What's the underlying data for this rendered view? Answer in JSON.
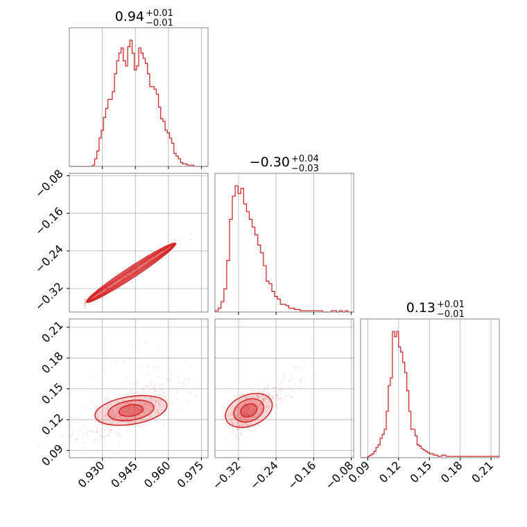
{
  "colors": {
    "accent": "#d62728",
    "grid": "#b0b0b0",
    "frame": "#808080"
  },
  "chart_data": [
    {
      "type": "histogram",
      "panel": "param-1-marginal",
      "title": {
        "value": "0.94",
        "plus": "+0.01",
        "minus": "−0.01"
      },
      "xlim": [
        0.915,
        0.978
      ],
      "xticks": [
        0.93,
        0.945,
        0.96,
        0.975
      ],
      "bins": [
        0.917,
        0.918,
        0.919,
        0.92,
        0.921,
        0.922,
        0.923,
        0.924,
        0.925,
        0.926,
        0.927,
        0.928,
        0.929,
        0.93,
        0.931,
        0.932,
        0.933,
        0.934,
        0.935,
        0.936,
        0.937,
        0.938,
        0.939,
        0.94,
        0.941,
        0.942,
        0.943,
        0.944,
        0.945,
        0.946,
        0.947,
        0.948,
        0.949,
        0.95,
        0.951,
        0.952,
        0.953,
        0.954,
        0.955,
        0.956,
        0.957,
        0.958,
        0.959,
        0.96,
        0.961,
        0.962,
        0.963,
        0.964,
        0.965,
        0.966,
        0.967,
        0.968,
        0.969,
        0.97,
        0.971,
        0.972,
        0.973,
        0.974,
        0.975,
        0.976,
        0.977
      ],
      "counts": [
        0,
        0,
        0,
        0,
        0,
        0,
        0,
        0,
        0,
        0.01,
        0.06,
        0.12,
        0.22,
        0.28,
        0.38,
        0.45,
        0.52,
        0.52,
        0.58,
        0.72,
        0.82,
        0.88,
        0.92,
        0.82,
        0.78,
        0.93,
        0.98,
        0.88,
        0.75,
        0.78,
        0.92,
        0.88,
        0.84,
        0.8,
        0.72,
        0.62,
        0.62,
        0.6,
        0.56,
        0.46,
        0.37,
        0.35,
        0.28,
        0.26,
        0.22,
        0.18,
        0.1,
        0.08,
        0.06,
        0.03,
        0.02,
        0.02,
        0.01,
        0.01,
        0.01,
        0,
        0,
        0,
        0,
        0,
        0
      ]
    },
    {
      "type": "histogram",
      "panel": "param-2-marginal",
      "title": {
        "value": "−0.30",
        "plus": "+0.04",
        "minus": "−0.03"
      },
      "xlim": [
        -0.37,
        -0.075
      ],
      "xticks": [
        -0.32,
        -0.24,
        -0.16,
        -0.08
      ],
      "xtick_labels": [
        "−0.32",
        "−0.24",
        "−0.16",
        "−0.08"
      ],
      "bins": [
        -0.366,
        -0.36,
        -0.354,
        -0.348,
        -0.342,
        -0.336,
        -0.33,
        -0.324,
        -0.318,
        -0.312,
        -0.306,
        -0.3,
        -0.294,
        -0.288,
        -0.282,
        -0.276,
        -0.27,
        -0.264,
        -0.258,
        -0.252,
        -0.246,
        -0.24,
        -0.234,
        -0.228,
        -0.222,
        -0.216,
        -0.21,
        -0.204,
        -0.198,
        -0.192,
        -0.186,
        -0.18,
        -0.174,
        -0.168,
        -0.162,
        -0.156,
        -0.15,
        -0.144,
        -0.138,
        -0.132,
        -0.126,
        -0.12,
        -0.114,
        -0.108,
        -0.102,
        -0.096,
        -0.09,
        -0.084,
        -0.078
      ],
      "counts": [
        0.01,
        0.03,
        0.08,
        0.18,
        0.4,
        0.72,
        0.9,
        0.98,
        0.92,
        0.96,
        0.84,
        0.78,
        0.72,
        0.66,
        0.6,
        0.52,
        0.46,
        0.36,
        0.24,
        0.22,
        0.16,
        0.12,
        0.1,
        0.06,
        0.06,
        0.05,
        0.03,
        0.03,
        0.02,
        0.02,
        0.01,
        0.01,
        0.01,
        0.01,
        0.01,
        0.01,
        0.01,
        0.01,
        0,
        0,
        0,
        0.01,
        0.01,
        0,
        0.01,
        0,
        0.01,
        0,
        0
      ]
    },
    {
      "type": "histogram",
      "panel": "param-3-marginal",
      "title": {
        "value": "0.13",
        "plus": "+0.01",
        "minus": "−0.01"
      },
      "xlim": [
        0.083,
        0.218
      ],
      "xticks": [
        0.09,
        0.12,
        0.15,
        0.18,
        0.21
      ],
      "bins": [
        0.089,
        0.091,
        0.093,
        0.095,
        0.097,
        0.099,
        0.101,
        0.103,
        0.105,
        0.107,
        0.109,
        0.111,
        0.113,
        0.115,
        0.117,
        0.119,
        0.121,
        0.123,
        0.125,
        0.127,
        0.129,
        0.131,
        0.133,
        0.135,
        0.137,
        0.139,
        0.141,
        0.143,
        0.145,
        0.147,
        0.149,
        0.151,
        0.153,
        0.155,
        0.157,
        0.159,
        0.161,
        0.163,
        0.165,
        0.167,
        0.169,
        0.171,
        0.173,
        0.175,
        0.177,
        0.179,
        0.181,
        0.183,
        0.185,
        0.187,
        0.189,
        0.191,
        0.193,
        0.195,
        0.197,
        0.199,
        0.201,
        0.203,
        0.205,
        0.207,
        0.209,
        0.211,
        0.213,
        0.215
      ],
      "counts": [
        0,
        0.01,
        0.02,
        0.03,
        0.05,
        0.08,
        0.1,
        0.15,
        0.18,
        0.22,
        0.36,
        0.56,
        0.62,
        0.98,
        0.94,
        0.98,
        0.86,
        0.82,
        0.74,
        0.66,
        0.52,
        0.36,
        0.22,
        0.22,
        0.17,
        0.1,
        0.09,
        0.07,
        0.06,
        0.05,
        0.04,
        0.03,
        0.03,
        0.02,
        0.02,
        0.01,
        0.01,
        0.02,
        0.02,
        0.01,
        0.01,
        0.01,
        0.01,
        0.01,
        0.01,
        0.01,
        0.01,
        0.01,
        0.01,
        0.01,
        0.01,
        0.01,
        0.01,
        0.01,
        0.01,
        0.01,
        0.01,
        0.01,
        0.01,
        0.01,
        0.01,
        0.01,
        0.01,
        0.01
      ]
    },
    {
      "type": "scatter-contour",
      "panel": "param-1-vs-param-2",
      "xlim": [
        0.915,
        0.978
      ],
      "ylim": [
        -0.37,
        -0.075
      ],
      "yticks": [
        -0.32,
        -0.24,
        -0.16,
        -0.08
      ],
      "ytick_labels": [
        "−0.32",
        "−0.24",
        "−0.16",
        "−0.08"
      ],
      "trend": {
        "x_from": 0.924,
        "y_from": -0.345,
        "x_to": 0.962,
        "y_to": -0.228
      },
      "levels": [
        {
          "width_y": 0.009,
          "pad_x": 0.0005
        },
        {
          "width_y": 0.016,
          "pad_x": 0.001
        },
        {
          "width_y": 0.022,
          "pad_x": 0.0015
        }
      ]
    },
    {
      "type": "scatter-contour",
      "panel": "param-1-vs-param-3",
      "xlim": [
        0.915,
        0.978
      ],
      "ylim": [
        0.083,
        0.218
      ],
      "yticks": [
        0.09,
        0.12,
        0.15,
        0.18,
        0.21
      ],
      "center": [
        0.943,
        0.129
      ],
      "levels": [
        {
          "rx": 0.0055,
          "ry": 0.0055,
          "angle": -9
        },
        {
          "rx": 0.0105,
          "ry": 0.0095,
          "angle": -9
        },
        {
          "rx": 0.0165,
          "ry": 0.0135,
          "angle": -9
        }
      ]
    },
    {
      "type": "scatter-contour",
      "panel": "param-2-vs-param-3",
      "xlim": [
        -0.37,
        -0.075
      ],
      "ylim": [
        0.083,
        0.218
      ],
      "center": [
        -0.298,
        0.129
      ],
      "levels": [
        {
          "rx": 0.018,
          "ry": 0.006,
          "angle": -22
        },
        {
          "rx": 0.033,
          "ry": 0.0105,
          "angle": -22
        },
        {
          "rx": 0.052,
          "ry": 0.015,
          "angle": -22
        }
      ]
    }
  ]
}
